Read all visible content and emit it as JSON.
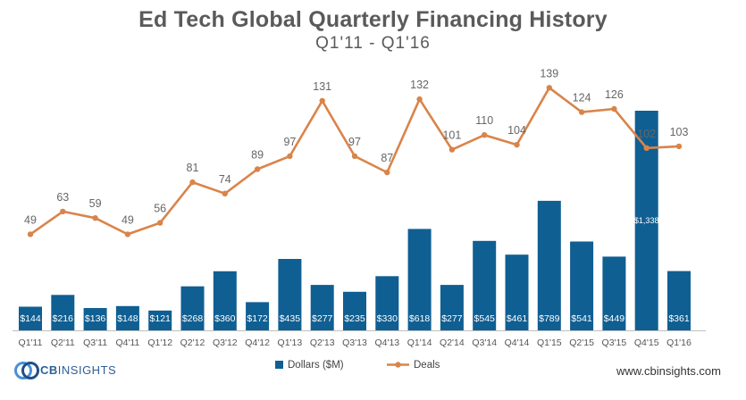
{
  "header": {
    "title": "Ed Tech Global Quarterly Financing History",
    "subtitle": "Q1'11 - Q1'16"
  },
  "footer": {
    "logo_bold": "CB",
    "logo_rest": "INSIGHTS",
    "source": "www.cbinsights.com"
  },
  "colors": {
    "bar": "#0f5f93",
    "line": "#d9844a",
    "axis_label": "#555555"
  },
  "chart_data": {
    "type": "bar+line",
    "title": "Ed Tech Global Quarterly Financing History",
    "subtitle": "Q1'11 - Q1'16",
    "categories": [
      "Q1'11",
      "Q2'11",
      "Q3'11",
      "Q4'11",
      "Q1'12",
      "Q2'12",
      "Q3'12",
      "Q4'12",
      "Q1'13",
      "Q2'13",
      "Q3'13",
      "Q4'13",
      "Q1'14",
      "Q2'14",
      "Q3'14",
      "Q4'14",
      "Q1'15",
      "Q2'15",
      "Q3'15",
      "Q4'15",
      "Q1'16"
    ],
    "series": [
      {
        "name": "Dollars ($M)",
        "type": "bar",
        "values": [
          144,
          216,
          136,
          148,
          121,
          268,
          360,
          172,
          435,
          277,
          235,
          330,
          618,
          277,
          545,
          461,
          789,
          541,
          449,
          1338,
          361
        ],
        "labels": [
          "$144",
          "$216",
          "$136",
          "$148",
          "$121",
          "$268",
          "$360",
          "$172",
          "$435",
          "$277",
          "$235",
          "$330",
          "$618",
          "$277",
          "$545",
          "$461",
          "$789",
          "$541",
          "$449",
          "$1,338",
          "$361"
        ]
      },
      {
        "name": "Deals",
        "type": "line",
        "values": [
          49,
          63,
          59,
          49,
          56,
          81,
          74,
          89,
          97,
          131,
          97,
          87,
          132,
          101,
          110,
          104,
          139,
          124,
          126,
          102,
          103
        ]
      }
    ],
    "bar_axis_range": [
      0,
      1400
    ],
    "line_axis_range": [
      -10,
      160
    ],
    "legend": "bottom-center",
    "grid": false
  }
}
